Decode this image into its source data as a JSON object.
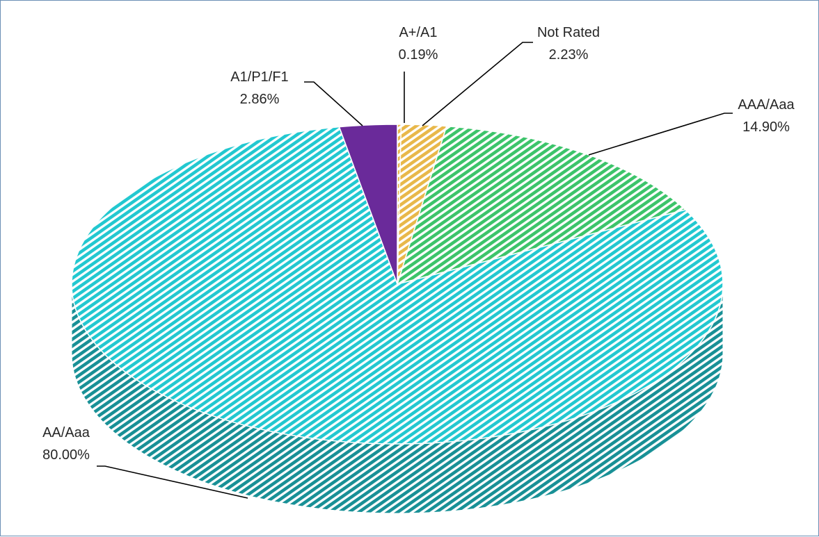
{
  "chart_data": {
    "type": "pie",
    "style": "3d",
    "title": "",
    "legend": "none",
    "slices": [
      {
        "label": "A+/A1",
        "value": 0.19,
        "display": "0.19%",
        "color": "#e8b84a",
        "pattern": "hatch"
      },
      {
        "label": "Not Rated",
        "value": 2.23,
        "display": "2.23%",
        "color": "#e8b84a",
        "pattern": "hatch"
      },
      {
        "label": "AAA/Aaa",
        "value": 14.9,
        "display": "14.90%",
        "color": "#3cc46a",
        "pattern": "hatch"
      },
      {
        "label": "AA/Aaa",
        "value": 80.0,
        "display": "80.00%",
        "color": "#22c8d0",
        "pattern": "hatch"
      },
      {
        "label": "A1/P1/F1",
        "value": 2.86,
        "display": "2.86%",
        "color": "#6a2a9a",
        "pattern": "solid"
      }
    ]
  }
}
